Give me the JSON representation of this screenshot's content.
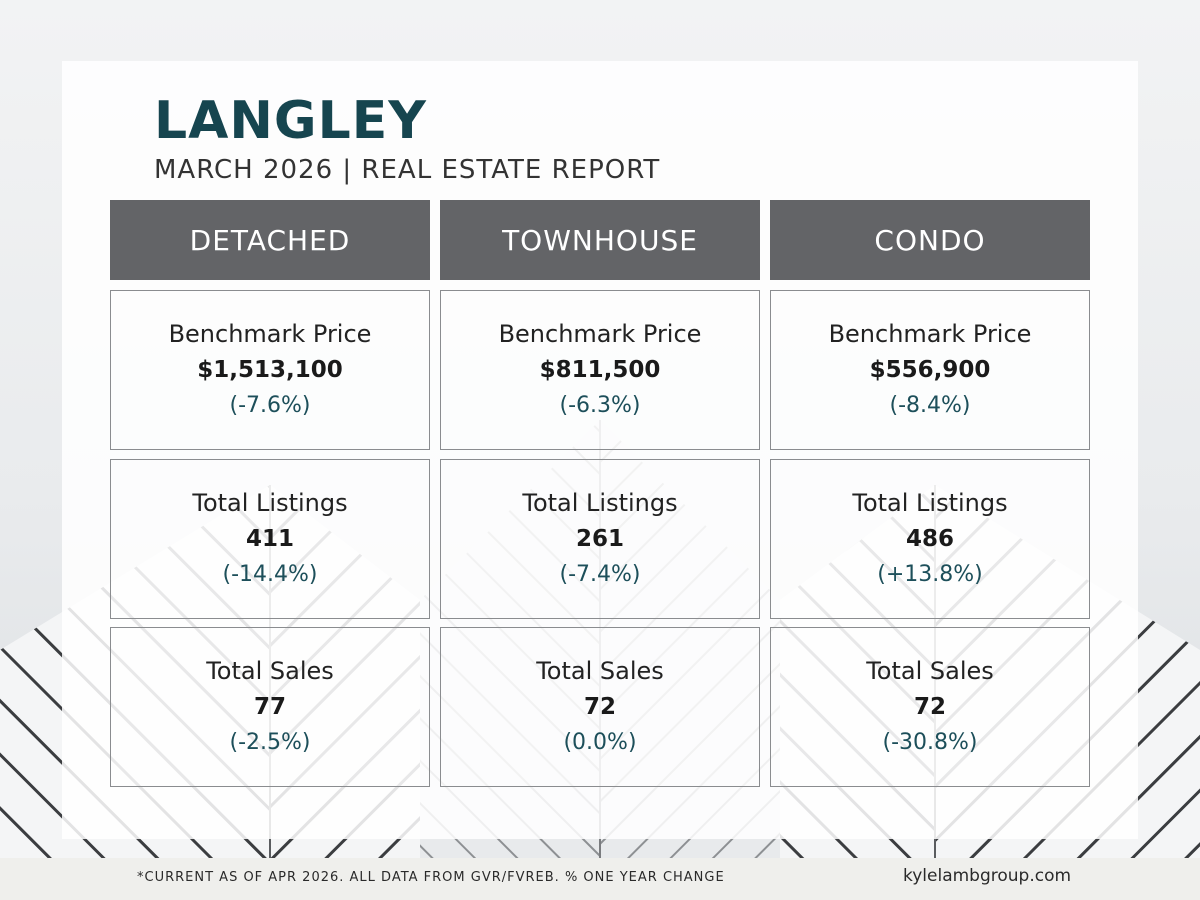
{
  "report": {
    "title": "LANGLEY",
    "subtitle": "MARCH 2026 | REAL ESTATE REPORT"
  },
  "columns": [
    {
      "header": "DETACHED",
      "benchmark": {
        "label": "Benchmark Price",
        "value": "$1,513,100",
        "change": "(-7.6%)"
      },
      "listings": {
        "label": "Total Listings",
        "value": "411",
        "change": "(-14.4%)"
      },
      "sales": {
        "label": "Total Sales",
        "value": "77",
        "change": "(-2.5%)"
      }
    },
    {
      "header": "TOWNHOUSE",
      "benchmark": {
        "label": "Benchmark Price",
        "value": "$811,500",
        "change": "(-6.3%)"
      },
      "listings": {
        "label": "Total Listings",
        "value": "261",
        "change": "(-7.4%)"
      },
      "sales": {
        "label": "Total Sales",
        "value": "72",
        "change": "(0.0%)"
      }
    },
    {
      "header": "CONDO",
      "benchmark": {
        "label": "Benchmark Price",
        "value": "$556,900",
        "change": "(-8.4%)"
      },
      "listings": {
        "label": "Total Listings",
        "value": "486",
        "change": "(+13.8%)"
      },
      "sales": {
        "label": "Total Sales",
        "value": "72",
        "change": "(-30.8%)"
      }
    }
  ],
  "footer": {
    "note": "*CURRENT AS  OF APR 2026. ALL DATA FROM GVR/FVREB.  % ONE YEAR CHANGE",
    "website": "kylelambgroup.com"
  },
  "colors": {
    "title": "#16454f",
    "header_bg": "#636467",
    "change_text": "#1d4f5a"
  },
  "background_image": "building-facade-illustration"
}
